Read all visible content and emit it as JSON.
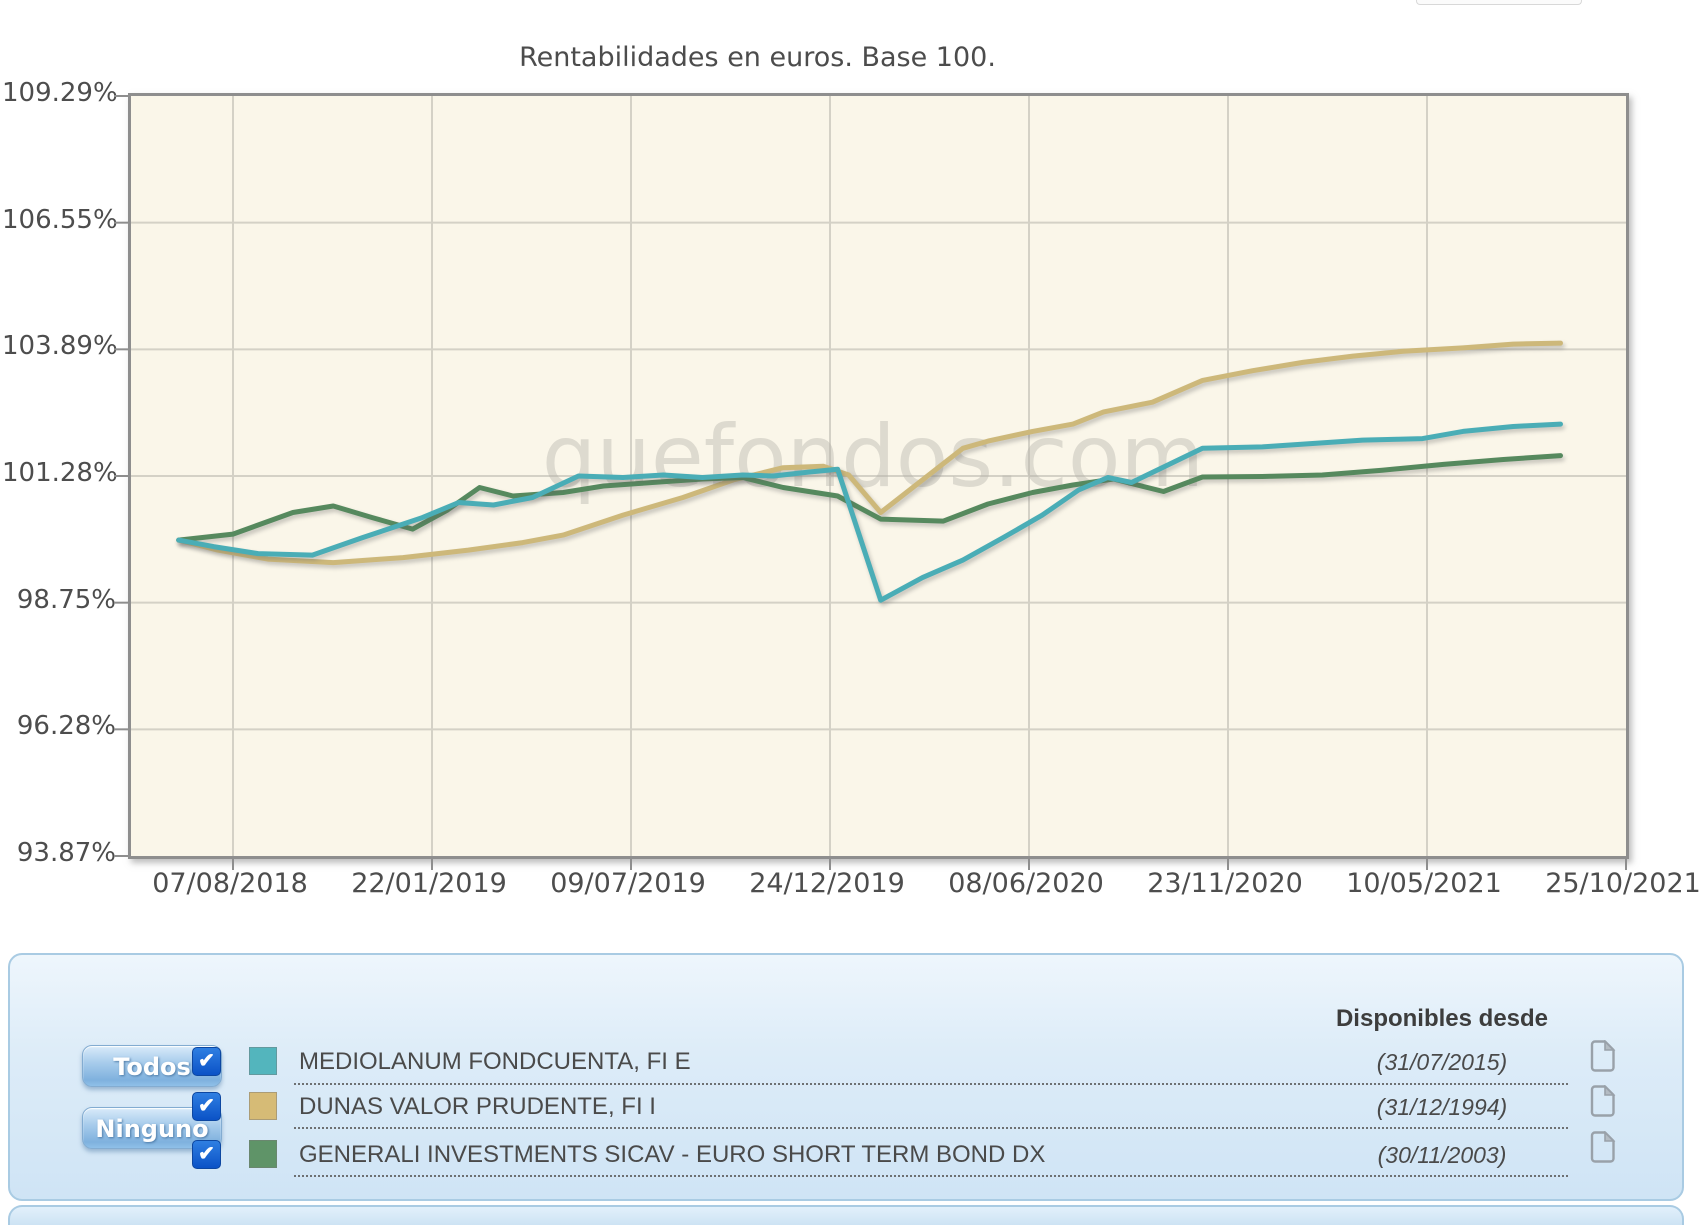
{
  "chart": {
    "title": "Rentabilidades en euros. Base 100.",
    "watermark": "quefondos.com",
    "colors": {
      "plot_background": "#faf6e9",
      "grid": "#d4d1c6",
      "border": "#8e8e8e",
      "axis_text": "#4d4d4d"
    }
  },
  "chart_data": {
    "type": "line",
    "title": "Rentabilidades en euros. Base 100.",
    "grid": true,
    "legend_position": "bottom-panel",
    "x_axis": {
      "tick_labels": [
        "07/08/2018",
        "22/01/2019",
        "09/07/2019",
        "24/12/2019",
        "08/06/2020",
        "23/11/2020",
        "10/05/2021",
        "25/10/2021"
      ]
    },
    "y_axis": {
      "tick_values": [
        109.29,
        106.55,
        103.89,
        101.28,
        98.75,
        96.28,
        93.87
      ],
      "unit": "%"
    },
    "x_unit": "fraction of x-axis tick span (0 = 07/08/2018 tick, 1 = 25/10/2021 tick)",
    "series": [
      {
        "name": "MEDIOLANUM FONDCUENTA, FI E",
        "color": "#4aadb6",
        "points": [
          [
            -0.039,
            100.0
          ],
          [
            -0.014,
            99.87
          ],
          [
            0.018,
            99.73
          ],
          [
            0.057,
            99.7
          ],
          [
            0.093,
            100.05
          ],
          [
            0.136,
            100.45
          ],
          [
            0.162,
            100.75
          ],
          [
            0.187,
            100.7
          ],
          [
            0.215,
            100.85
          ],
          [
            0.248,
            101.28
          ],
          [
            0.28,
            101.25
          ],
          [
            0.309,
            101.3
          ],
          [
            0.337,
            101.25
          ],
          [
            0.366,
            101.3
          ],
          [
            0.388,
            101.28
          ],
          [
            0.413,
            101.36
          ],
          [
            0.434,
            101.42
          ],
          [
            0.465,
            98.8
          ],
          [
            0.495,
            99.25
          ],
          [
            0.524,
            99.6
          ],
          [
            0.553,
            100.05
          ],
          [
            0.581,
            100.5
          ],
          [
            0.607,
            101.0
          ],
          [
            0.628,
            101.25
          ],
          [
            0.645,
            101.15
          ],
          [
            0.696,
            101.85
          ],
          [
            0.739,
            101.88
          ],
          [
            0.775,
            101.95
          ],
          [
            0.811,
            102.02
          ],
          [
            0.854,
            102.05
          ],
          [
            0.883,
            102.2
          ],
          [
            0.919,
            102.3
          ],
          [
            0.953,
            102.35
          ]
        ]
      },
      {
        "name": "DUNAS VALOR PRUDENTE, FI I",
        "color": "#cdb87a",
        "points": [
          [
            -0.039,
            100.0
          ],
          [
            -0.011,
            99.8
          ],
          [
            0.025,
            99.62
          ],
          [
            0.072,
            99.55
          ],
          [
            0.122,
            99.65
          ],
          [
            0.169,
            99.8
          ],
          [
            0.208,
            99.95
          ],
          [
            0.237,
            100.1
          ],
          [
            0.28,
            100.5
          ],
          [
            0.323,
            100.85
          ],
          [
            0.359,
            101.2
          ],
          [
            0.395,
            101.45
          ],
          [
            0.424,
            101.48
          ],
          [
            0.442,
            101.3
          ],
          [
            0.465,
            100.55
          ],
          [
            0.488,
            101.05
          ],
          [
            0.524,
            101.85
          ],
          [
            0.542,
            102.0
          ],
          [
            0.574,
            102.2
          ],
          [
            0.603,
            102.35
          ],
          [
            0.625,
            102.6
          ],
          [
            0.66,
            102.8
          ],
          [
            0.696,
            103.25
          ],
          [
            0.732,
            103.45
          ],
          [
            0.768,
            103.62
          ],
          [
            0.804,
            103.75
          ],
          [
            0.84,
            103.85
          ],
          [
            0.883,
            103.92
          ],
          [
            0.919,
            104.0
          ],
          [
            0.953,
            104.02
          ]
        ]
      },
      {
        "name": "GENERALI INVESTMENTS SICAV - EURO SHORT TERM BOND DX",
        "color": "#56895e",
        "points": [
          [
            -0.039,
            100.0
          ],
          [
            0.0,
            100.12
          ],
          [
            0.043,
            100.55
          ],
          [
            0.072,
            100.68
          ],
          [
            0.1,
            100.45
          ],
          [
            0.129,
            100.22
          ],
          [
            0.154,
            100.6
          ],
          [
            0.177,
            101.05
          ],
          [
            0.201,
            100.88
          ],
          [
            0.237,
            100.95
          ],
          [
            0.266,
            101.08
          ],
          [
            0.301,
            101.15
          ],
          [
            0.337,
            101.22
          ],
          [
            0.366,
            101.25
          ],
          [
            0.395,
            101.05
          ],
          [
            0.434,
            100.88
          ],
          [
            0.465,
            100.42
          ],
          [
            0.51,
            100.38
          ],
          [
            0.542,
            100.72
          ],
          [
            0.574,
            100.95
          ],
          [
            0.603,
            101.1
          ],
          [
            0.632,
            101.22
          ],
          [
            0.668,
            100.97
          ],
          [
            0.696,
            101.26
          ],
          [
            0.739,
            101.27
          ],
          [
            0.782,
            101.3
          ],
          [
            0.825,
            101.4
          ],
          [
            0.869,
            101.52
          ],
          [
            0.912,
            101.62
          ],
          [
            0.953,
            101.7
          ]
        ]
      }
    ]
  },
  "legend": {
    "buttons": [
      {
        "label": "Todos"
      },
      {
        "label": "Ninguno"
      }
    ],
    "header": "Disponibles desde",
    "rows": [
      {
        "name": "MEDIOLANUM FONDCUENTA, FI E",
        "color": "#53b5bd",
        "available_since": "(31/07/2015)",
        "checked": true
      },
      {
        "name": "DUNAS VALOR PRUDENTE, FI I",
        "color": "#d6bb76",
        "available_since": "(31/12/1994)",
        "checked": true
      },
      {
        "name": "GENERALI INVESTMENTS SICAV - EURO SHORT TERM BOND DX",
        "color": "#5f9468",
        "available_since": "(30/11/2003)",
        "checked": true
      }
    ]
  }
}
